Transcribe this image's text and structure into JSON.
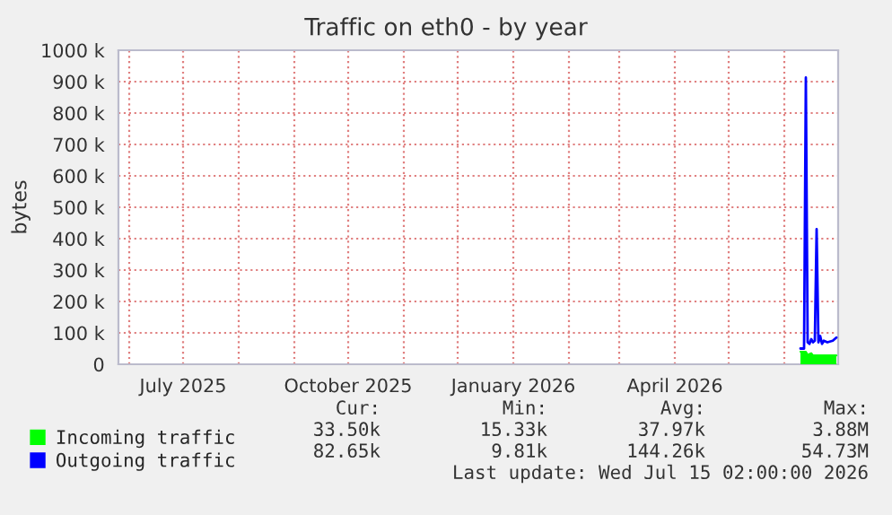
{
  "chart_data": {
    "type": "line",
    "title": "Traffic on eth0 - by year",
    "ylabel": "bytes",
    "xlim": [
      "2025-05-26",
      "2026-07-01"
    ],
    "xticks": [
      {
        "value": "2025-06-01",
        "label": null
      },
      {
        "value": "2025-07-01",
        "label": "July 2025"
      },
      {
        "value": "2025-08-01",
        "label": null
      },
      {
        "value": "2025-09-01",
        "label": null
      },
      {
        "value": "2025-10-01",
        "label": "October 2025"
      },
      {
        "value": "2025-11-01",
        "label": null
      },
      {
        "value": "2025-12-01",
        "label": null
      },
      {
        "value": "2026-01-01",
        "label": "January 2026"
      },
      {
        "value": "2026-02-01",
        "label": null
      },
      {
        "value": "2026-03-01",
        "label": null
      },
      {
        "value": "2026-04-01",
        "label": "April 2026"
      },
      {
        "value": "2026-05-01",
        "label": null
      },
      {
        "value": "2026-06-01",
        "label": null
      }
    ],
    "ylim": [
      0,
      1000000
    ],
    "yticks": [
      0,
      {
        "value": 100000,
        "label": "100 k"
      },
      {
        "value": 200000,
        "label": "200 k"
      },
      {
        "value": 300000,
        "label": "300 k"
      },
      {
        "value": 400000,
        "label": "400 k"
      },
      {
        "value": 500000,
        "label": "500 k"
      },
      {
        "value": 600000,
        "label": "600 k"
      },
      {
        "value": 700000,
        "label": "700 k"
      },
      {
        "value": 800000,
        "label": "800 k"
      },
      {
        "value": 900000,
        "label": "900 k"
      },
      {
        "value": 1000000,
        "label": "1000 k"
      }
    ],
    "grid": true,
    "legend": "bottom left",
    "series": [
      {
        "name": "Incoming traffic",
        "type": "area",
        "color": "#00ff00",
        "x": [
          "2026-06-10",
          "2026-06-13",
          "2026-06-14",
          "2026-06-16",
          "2026-06-17",
          "2026-06-30"
        ],
        "values": [
          40000,
          40000,
          30000,
          35000,
          28000,
          28000
        ]
      },
      {
        "name": "Outgoing traffic",
        "color": "#0000ff",
        "x": [
          "2026-06-10",
          "2026-06-12",
          "2026-06-13",
          "2026-06-14",
          "2026-06-15",
          "2026-06-16",
          "2026-06-17",
          "2026-06-18",
          "2026-06-19",
          "2026-06-20",
          "2026-06-21",
          "2026-06-22",
          "2026-06-23",
          "2026-06-25",
          "2026-06-28",
          "2026-06-30"
        ],
        "values": [
          50000,
          50000,
          913000,
          70000,
          65000,
          80000,
          70000,
          75000,
          430000,
          70000,
          90000,
          65000,
          75000,
          70000,
          75000,
          85000
        ]
      }
    ],
    "annotations": [
      "Cur:",
      "Min:",
      "Avg:",
      "Max:",
      "33.50k",
      "15.33k",
      "37.97k",
      "3.88M",
      "82.65k",
      "9.81k",
      "144.26k",
      "54.73M",
      "Last update: Wed Jul 15 02:00:00 2026"
    ]
  }
}
